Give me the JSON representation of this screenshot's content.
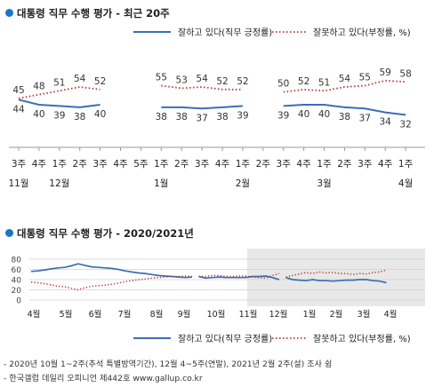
{
  "colors": {
    "approve": "#3d6db5",
    "disapprove": "#b23a35",
    "accent": "#1a76c8",
    "shade": "#e8e8e8"
  },
  "footnotes": [
    "- 2020년 10월 1~2주(추석 특별방역기간), 12월 4~5주(연말), 2021년 2월 2주(설) 조사 쉼",
    "- 한국갤럽 데일리 오피니언 제442호 www.gallup.co.kr"
  ],
  "chart_data": [
    {
      "type": "line",
      "title": "대통령 직무 수행 평가 - 최근 20주",
      "ylim": [
        0,
        70
      ],
      "x_ticks": [
        {
          "week": "3주",
          "month": "11월"
        },
        {
          "week": "4주",
          "month": ""
        },
        {
          "week": "1주",
          "month": "12월"
        },
        {
          "week": "2주",
          "month": ""
        },
        {
          "week": "3주",
          "month": ""
        },
        {
          "week": "4주",
          "month": ""
        },
        {
          "week": "5주",
          "month": ""
        },
        {
          "week": "1주",
          "month": "1월"
        },
        {
          "week": "2주",
          "month": ""
        },
        {
          "week": "3주",
          "month": ""
        },
        {
          "week": "4주",
          "month": ""
        },
        {
          "week": "1주",
          "month": "2월"
        },
        {
          "week": "2주",
          "month": ""
        },
        {
          "week": "3주",
          "month": ""
        },
        {
          "week": "4주",
          "month": ""
        },
        {
          "week": "1주",
          "month": "3월"
        },
        {
          "week": "2주",
          "month": ""
        },
        {
          "week": "3주",
          "month": ""
        },
        {
          "week": "4주",
          "month": ""
        },
        {
          "week": "1주",
          "month": "4월"
        }
      ],
      "series": [
        {
          "name": "잘하고 있다(직무 긍정률)",
          "style": "solid",
          "segments": [
            [
              0,
              4
            ],
            [
              7,
              11
            ],
            [
              12,
              19
            ]
          ],
          "values": [
            44,
            40,
            39,
            38,
            40,
            null,
            null,
            38,
            38,
            37,
            38,
            39,
            null,
            39,
            40,
            40,
            38,
            37,
            34,
            32
          ]
        },
        {
          "name": "잘못하고 있다(부정률, %)",
          "style": "dotted",
          "segments": [
            [
              0,
              4
            ],
            [
              7,
              11
            ],
            [
              12,
              19
            ]
          ],
          "values": [
            45,
            48,
            51,
            54,
            52,
            null,
            null,
            55,
            53,
            54,
            52,
            52,
            null,
            50,
            52,
            51,
            54,
            55,
            59,
            58
          ]
        }
      ]
    },
    {
      "type": "line",
      "title": "대통령 직무 수행 평가 - 2020/2021년",
      "ylim": [
        0,
        80
      ],
      "y_ticks": [
        0,
        20,
        40,
        60,
        80
      ],
      "grid": true,
      "x_labels": [
        "4월",
        "5월",
        "6월",
        "7월",
        "8월",
        "9월",
        "10월",
        "11월",
        "12월",
        "1월",
        "2월",
        "3월",
        "4월"
      ],
      "shaded_period": "최근 20주",
      "series": [
        {
          "name": "잘하고 있다(직무 긍정률)",
          "style": "solid",
          "segments": [
            [
              0,
              24
            ],
            [
              25,
              37
            ],
            [
              38,
              53
            ]
          ],
          "values": [
            56,
            57,
            59,
            61,
            63,
            64,
            67,
            71,
            68,
            65,
            64,
            63,
            62,
            60,
            57,
            55,
            53,
            52,
            50,
            48,
            47,
            46,
            45,
            44,
            45,
            46,
            43,
            44,
            45,
            44,
            44,
            44,
            44,
            46,
            46,
            47,
            44,
            40,
            44,
            40,
            39,
            38,
            40,
            38,
            38,
            37,
            38,
            39,
            39,
            40,
            40,
            38,
            37,
            34,
            32
          ]
        },
        {
          "name": "잘못하고 있다(부정률, %)",
          "style": "dotted",
          "segments": [
            [
              0,
              24
            ],
            [
              25,
              37
            ],
            [
              38,
              53
            ]
          ],
          "values": [
            35,
            34,
            32,
            30,
            27,
            26,
            23,
            20,
            24,
            27,
            28,
            29,
            31,
            33,
            36,
            38,
            40,
            41,
            43,
            44,
            45,
            46,
            46,
            47,
            46,
            46,
            46,
            48,
            48,
            46,
            46,
            47,
            47,
            45,
            44,
            43,
            48,
            52,
            45,
            48,
            51,
            54,
            52,
            55,
            53,
            54,
            52,
            52,
            50,
            52,
            51,
            54,
            55,
            59,
            58
          ]
        }
      ]
    }
  ]
}
